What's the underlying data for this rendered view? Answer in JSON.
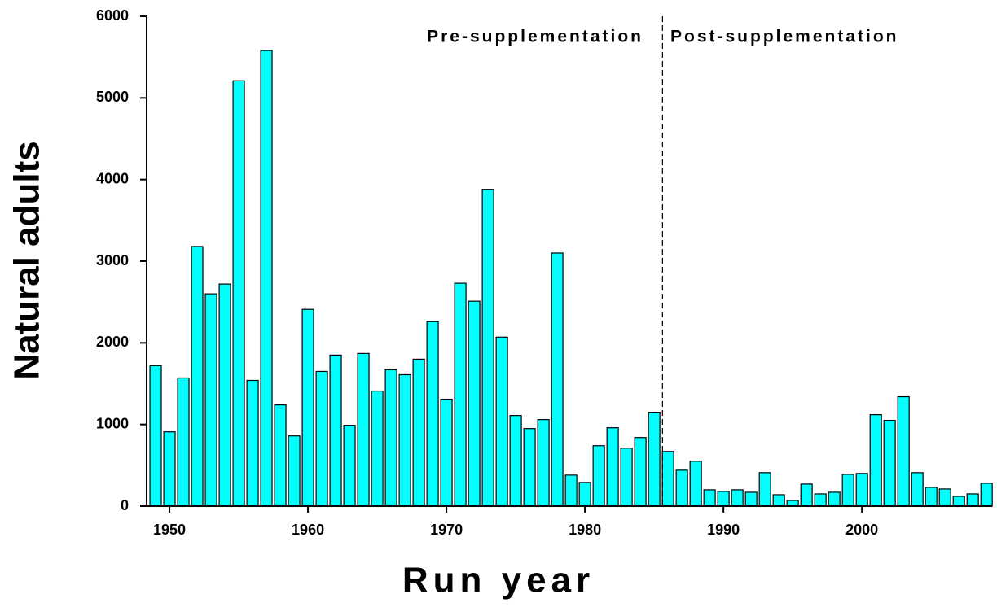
{
  "chart_data": {
    "type": "bar",
    "xlabel": "Run year",
    "ylabel": "Natural adults",
    "annotations": [
      {
        "text": "Pre-supplementation"
      },
      {
        "text": "Post-supplementation"
      }
    ],
    "divider_x": 1985.6,
    "x": [
      1949,
      1950,
      1951,
      1952,
      1953,
      1954,
      1955,
      1956,
      1957,
      1958,
      1959,
      1960,
      1961,
      1962,
      1963,
      1964,
      1965,
      1966,
      1967,
      1968,
      1969,
      1970,
      1971,
      1972,
      1973,
      1974,
      1975,
      1976,
      1977,
      1978,
      1979,
      1980,
      1981,
      1982,
      1983,
      1984,
      1985,
      1986,
      1987,
      1988,
      1989,
      1990,
      1991,
      1992,
      1993,
      1994,
      1995,
      1996,
      1997,
      1998,
      1999,
      2000,
      2001,
      2002,
      2003,
      2004,
      2005,
      2006,
      2007,
      2008,
      2009
    ],
    "values": [
      1720,
      910,
      1570,
      3180,
      2600,
      2720,
      5210,
      1540,
      5580,
      1240,
      860,
      2410,
      1650,
      1850,
      990,
      1870,
      1410,
      1670,
      1610,
      1800,
      2260,
      1310,
      2730,
      2510,
      3880,
      2070,
      1110,
      950,
      1060,
      3100,
      380,
      290,
      740,
      960,
      710,
      840,
      1150,
      670,
      440,
      550,
      200,
      180,
      200,
      170,
      410,
      140,
      70,
      270,
      150,
      170,
      390,
      400,
      1120,
      1050,
      1340,
      410,
      230,
      210,
      120,
      150,
      280
    ],
    "color": "#00ffff",
    "xlim": [
      1948.35,
      2009.4
    ],
    "xticks": [
      1950,
      1960,
      1970,
      1980,
      1990,
      2000
    ],
    "ylim": [
      0,
      6000
    ],
    "yticks": [
      0,
      1000,
      2000,
      3000,
      4000,
      5000,
      6000
    ]
  }
}
